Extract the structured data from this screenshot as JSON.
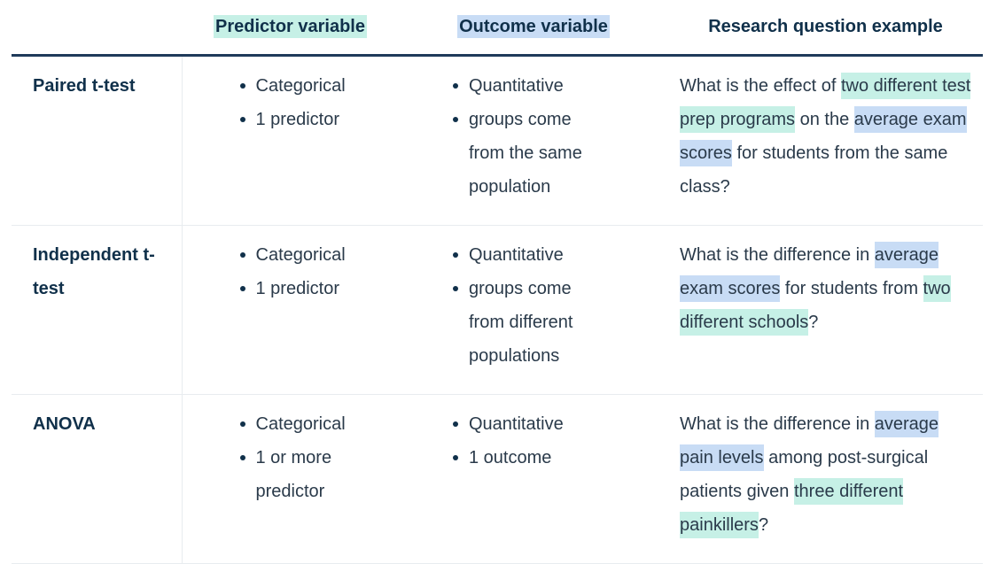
{
  "header": {
    "col0": "",
    "col1": "Predictor variable",
    "col2": "Outcome variable",
    "col3": "Research question example"
  },
  "rows": [
    {
      "name": "Paired t-test",
      "predictor": [
        "Categorical",
        "1 predictor"
      ],
      "outcome": [
        "Quantitative",
        "groups come from the same population"
      ],
      "question": {
        "pre": "What is the effect of ",
        "hl1": "two different test prep programs",
        "mid": " on the ",
        "hl2": "average exam scores",
        "post": " for students from the same class?"
      }
    },
    {
      "name": "Independent t-test",
      "predictor": [
        "Categorical",
        "1 predictor"
      ],
      "outcome": [
        "Quantitative",
        "groups come from different populations"
      ],
      "question": {
        "pre": "What is the difference in ",
        "hl1": "average exam scores",
        "mid": " for students from ",
        "hl2": "two different schools",
        "post": "?"
      }
    },
    {
      "name": "ANOVA",
      "predictor": [
        "Categorical",
        "1 or more predictor"
      ],
      "outcome": [
        "Quantitative",
        "1 outcome"
      ],
      "question": {
        "pre": "What is the difference in ",
        "hl1": "average pain levels",
        "mid": " among post-surgical patients given ",
        "hl2": "three different painkillers",
        "post": "?"
      }
    }
  ],
  "colors": {
    "green_highlight": "#c6f0e6",
    "blue_highlight": "#c8dcf5",
    "heading_text": "#10304a",
    "body_text": "#2a3a4a"
  }
}
